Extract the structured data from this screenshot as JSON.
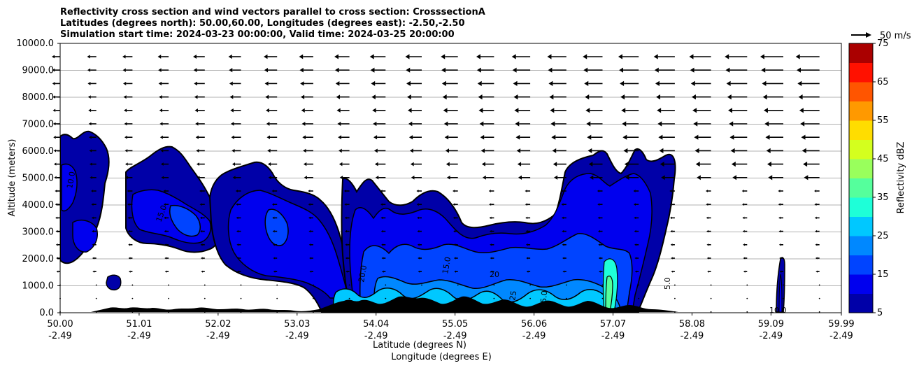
{
  "chart_data": {
    "type": "contour",
    "title_lines": [
      "Reflectivity cross section and wind vectors parallel to cross section: CrosssectionA",
      "Latitudes (degrees north): 50.00,60.00, Longitudes (degrees east): -2.50,-2.50",
      "Simulation start time: 2024-03-23 00:00:00, Valid time: 2024-03-25 20:00:00"
    ],
    "xlabel_lat": "Latitude (degrees N)",
    "xlabel_lon": "Longitude (degrees E)",
    "ylabel": "Altitude (meters)",
    "xlim": [
      50.0,
      59.99
    ],
    "ylim": [
      0,
      10000
    ],
    "grid": "horizontal",
    "x_ticks": [
      {
        "lat": "50.00",
        "lon": "-2.49",
        "value": 50.0
      },
      {
        "lat": "51.01",
        "lon": "-2.49",
        "value": 51.01
      },
      {
        "lat": "52.02",
        "lon": "-2.49",
        "value": 52.02
      },
      {
        "lat": "53.03",
        "lon": "-2.49",
        "value": 53.03
      },
      {
        "lat": "54.04",
        "lon": "-2.49",
        "value": 54.04
      },
      {
        "lat": "55.05",
        "lon": "-2.49",
        "value": 55.05
      },
      {
        "lat": "56.06",
        "lon": "-2.49",
        "value": 56.06
      },
      {
        "lat": "57.07",
        "lon": "-2.49",
        "value": 57.07
      },
      {
        "lat": "58.08",
        "lon": "-2.49",
        "value": 58.08
      },
      {
        "lat": "59.09",
        "lon": "-2.49",
        "value": 59.09
      },
      {
        "lat": "59.99",
        "lon": "-2.49",
        "value": 59.99
      }
    ],
    "y_ticks": [
      "0.0",
      "1000.0",
      "2000.0",
      "3000.0",
      "4000.0",
      "5000.0",
      "6000.0",
      "7000.0",
      "8000.0",
      "9000.0",
      "10000.0"
    ],
    "colorbar": {
      "label": "Reflectivity dBZ",
      "min": 5,
      "max": 75,
      "step": 5,
      "tick_labels": [
        "5",
        "15",
        "25",
        "35",
        "45",
        "55",
        "65",
        "75"
      ],
      "colors": [
        "#0000a8",
        "#0000ee",
        "#0044ff",
        "#0088ff",
        "#00c8ff",
        "#1effd8",
        "#55ff9c",
        "#99ff5c",
        "#d4ff1e",
        "#ffdd00",
        "#ff9900",
        "#ff5500",
        "#ff1100",
        "#aa0000"
      ]
    },
    "wind_key": "50 m/s",
    "contour_labels": [
      "10.0",
      "15.0",
      "20",
      "25",
      "25.0",
      "5.0",
      "20.0",
      "10.0",
      "15.0"
    ]
  }
}
